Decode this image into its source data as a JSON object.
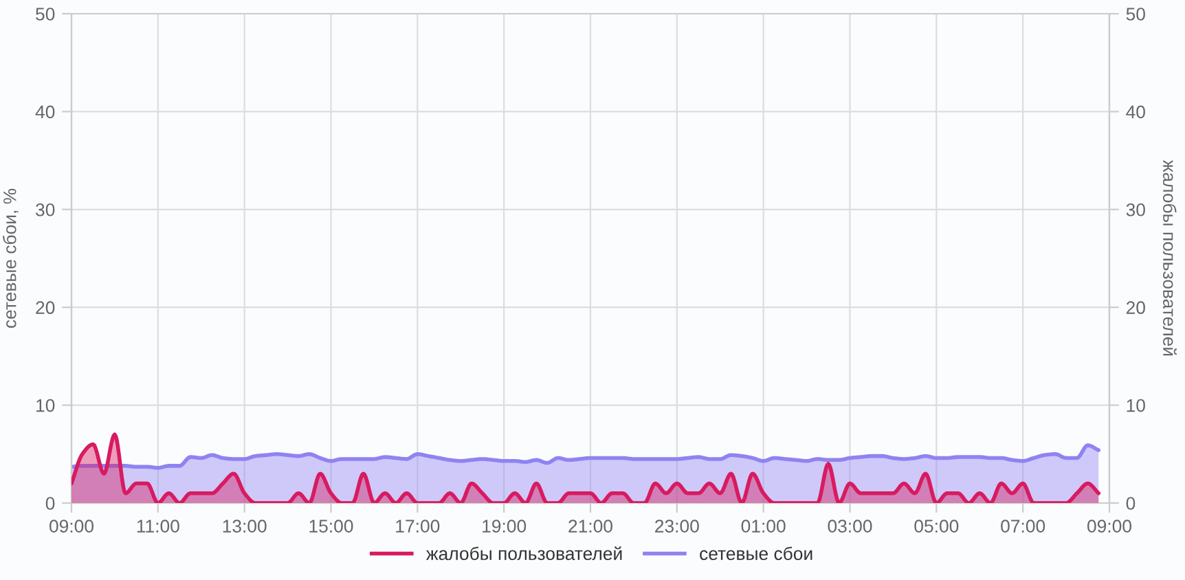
{
  "chart_data": {
    "type": "area",
    "categories": [
      "09:00",
      null,
      null,
      null,
      null,
      null,
      null,
      null,
      "11:00",
      null,
      null,
      null,
      null,
      null,
      null,
      null,
      "13:00",
      null,
      null,
      null,
      null,
      null,
      null,
      null,
      "15:00",
      null,
      null,
      null,
      null,
      null,
      null,
      null,
      "17:00",
      null,
      null,
      null,
      null,
      null,
      null,
      null,
      "19:00",
      null,
      null,
      null,
      null,
      null,
      null,
      null,
      "21:00",
      null,
      null,
      null,
      null,
      null,
      null,
      null,
      "23:00",
      null,
      null,
      null,
      null,
      null,
      null,
      null,
      "01:00",
      null,
      null,
      null,
      null,
      null,
      null,
      null,
      "03:00",
      null,
      null,
      null,
      null,
      null,
      null,
      null,
      "05:00",
      null,
      null,
      null,
      null,
      null,
      null,
      null,
      "07:00",
      null,
      null,
      null,
      null,
      null,
      null,
      null,
      "09:00"
    ],
    "series": [
      {
        "name": "жалобы пользователей",
        "color": "#d81b60",
        "axis": "y2",
        "values": [
          2,
          5,
          6,
          3,
          7,
          1,
          2,
          2,
          0,
          1,
          0,
          1,
          1,
          1,
          2,
          3,
          1,
          0,
          0,
          0,
          0,
          1,
          0,
          3,
          1,
          0,
          0,
          3,
          0,
          1,
          0,
          1,
          0,
          0,
          0,
          1,
          0,
          2,
          1,
          0,
          0,
          1,
          0,
          2,
          0,
          0,
          1,
          1,
          1,
          0,
          1,
          1,
          0,
          0,
          2,
          1,
          2,
          1,
          1,
          2,
          1,
          3,
          0,
          3,
          1,
          0,
          0,
          0,
          0,
          0,
          4,
          0,
          2,
          1,
          1,
          1,
          1,
          2,
          1,
          3,
          0,
          1,
          1,
          0,
          1,
          0,
          2,
          1,
          2,
          0,
          0,
          0,
          0,
          1,
          2,
          1,
          null
        ]
      },
      {
        "name": "сетевые сбои",
        "color": "#8f83f2",
        "values": [
          3.7,
          3.8,
          3.8,
          3.8,
          3.8,
          3.8,
          3.7,
          3.7,
          3.6,
          3.8,
          3.8,
          4.7,
          4.6,
          4.9,
          4.6,
          4.5,
          4.5,
          4.8,
          4.9,
          5.0,
          4.9,
          4.8,
          5.0,
          4.6,
          4.3,
          4.5,
          4.5,
          4.5,
          4.5,
          4.7,
          4.6,
          4.5,
          5.0,
          4.8,
          4.6,
          4.4,
          4.3,
          4.4,
          4.5,
          4.4,
          4.3,
          4.3,
          4.2,
          4.4,
          4.1,
          4.6,
          4.4,
          4.5,
          4.6,
          4.6,
          4.6,
          4.6,
          4.5,
          4.5,
          4.5,
          4.5,
          4.5,
          4.6,
          4.7,
          4.5,
          4.5,
          4.9,
          4.8,
          4.6,
          4.3,
          4.6,
          4.5,
          4.4,
          4.3,
          4.5,
          4.4,
          4.4,
          4.6,
          4.7,
          4.8,
          4.8,
          4.6,
          4.5,
          4.6,
          4.8,
          4.6,
          4.6,
          4.7,
          4.7,
          4.7,
          4.6,
          4.6,
          4.4,
          4.3,
          4.6,
          4.9,
          5.0,
          4.6,
          4.6,
          5.9,
          5.4,
          null
        ]
      }
    ],
    "ylim": [
      0,
      50
    ],
    "yticks": [
      0,
      10,
      20,
      30,
      40,
      50
    ],
    "y2lim": [
      0,
      50
    ],
    "y2ticks": [
      0,
      10,
      20,
      30,
      40,
      50
    ],
    "ylabel": "сетевые сбои, %",
    "y2label": "жалобы пользователей",
    "grid": true,
    "legend": "bottom"
  }
}
